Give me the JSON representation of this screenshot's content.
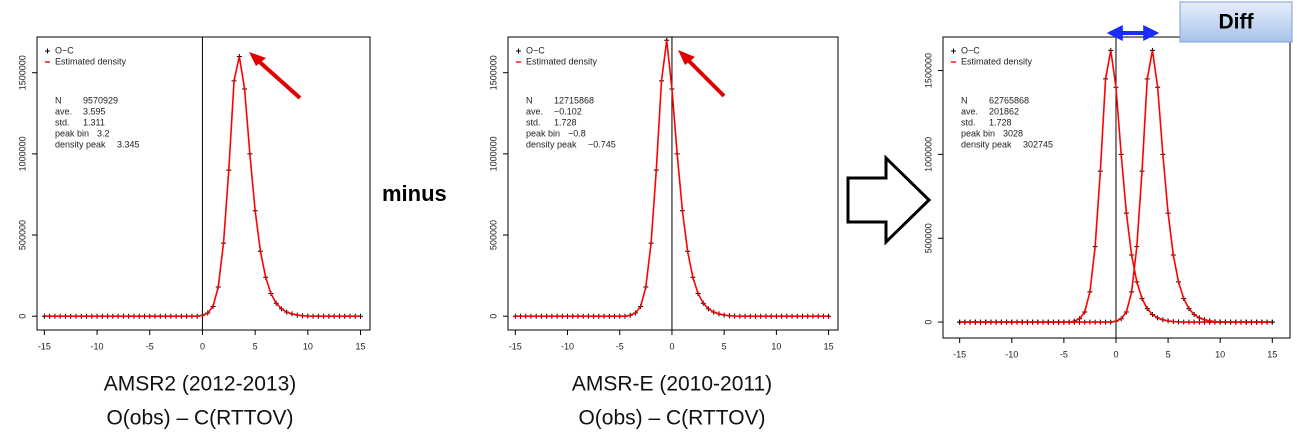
{
  "chart_data": [
    {
      "type": "line",
      "xlim": [
        -15.7,
        15.9
      ],
      "ylim": [
        -85000,
        1720000
      ],
      "xticks": [
        -15,
        -10,
        -5,
        0,
        5,
        10,
        15
      ],
      "yticks": [
        0,
        500000,
        1000000,
        1500000
      ],
      "vline": 0,
      "x": [
        -15,
        -14.5,
        -14,
        -13.5,
        -13,
        -12.5,
        -12,
        -11.5,
        -11,
        -10.5,
        -10,
        -9.5,
        -9,
        -8.5,
        -8,
        -7.5,
        -7,
        -6.5,
        -6,
        -5.5,
        -5,
        -4.5,
        -4,
        -3.5,
        -3,
        -2.5,
        -2,
        -1.5,
        -1,
        -0.5,
        0,
        0.5,
        1,
        1.5,
        2,
        2.5,
        3,
        3.5,
        4,
        4.5,
        5,
        5.5,
        6,
        6.5,
        7,
        7.5,
        8,
        8.5,
        9,
        9.5,
        10,
        10.5,
        11,
        11.5,
        12,
        12.5,
        13,
        13.5,
        14,
        14.5,
        15
      ],
      "series": [
        {
          "name": "O−C",
          "style": "points",
          "color": "#000000",
          "values": [
            0,
            0,
            0,
            0,
            0,
            0,
            0,
            0,
            0,
            0,
            0,
            0,
            0,
            0,
            0,
            0,
            0,
            0,
            0,
            0,
            0,
            0,
            0,
            0,
            0,
            0,
            0,
            0,
            0,
            0,
            5000,
            20000,
            60000,
            180000,
            450000,
            900000,
            1450000,
            1600000,
            1400000,
            1000000,
            650000,
            400000,
            240000,
            140000,
            80000,
            45000,
            25000,
            14000,
            7000,
            3000,
            1000,
            0,
            0,
            0,
            0,
            0,
            0,
            0,
            0,
            0,
            0
          ]
        },
        {
          "name": "Estimated density",
          "style": "line",
          "color": "#ff0000",
          "values": [
            0,
            0,
            0,
            0,
            0,
            0,
            0,
            0,
            0,
            0,
            0,
            0,
            0,
            0,
            0,
            0,
            0,
            0,
            0,
            0,
            0,
            0,
            0,
            0,
            0,
            0,
            0,
            0,
            0,
            0,
            5000,
            20000,
            60000,
            180000,
            450000,
            900000,
            1450000,
            1600000,
            1400000,
            1000000,
            650000,
            400000,
            240000,
            140000,
            80000,
            45000,
            25000,
            14000,
            7000,
            3000,
            1000,
            0,
            0,
            0,
            0,
            0,
            0,
            0,
            0,
            0,
            0
          ]
        }
      ],
      "stats": [
        {
          "label": "N",
          "value": "9570929"
        },
        {
          "label": "ave.",
          "value": "3.595"
        },
        {
          "label": "std.",
          "value": "1.311"
        },
        {
          "label": "peak bin",
          "value": "3.2"
        },
        {
          "label": "density peak",
          "value": "3.345",
          "color": "#ff0000"
        }
      ],
      "caption": [
        "AMSR2 (2012-2013)",
        "O(obs) – C(RTTOV)"
      ]
    },
    {
      "type": "line",
      "xlim": [
        -15.7,
        15.9
      ],
      "ylim": [
        -85000,
        1720000
      ],
      "xticks": [
        -15,
        -10,
        -5,
        0,
        5,
        10,
        15
      ],
      "yticks": [
        0,
        500000,
        1000000,
        1500000
      ],
      "vline": 0,
      "x": [
        -15,
        -14.5,
        -14,
        -13.5,
        -13,
        -12.5,
        -12,
        -11.5,
        -11,
        -10.5,
        -10,
        -9.5,
        -9,
        -8.5,
        -8,
        -7.5,
        -7,
        -6.5,
        -6,
        -5.5,
        -5,
        -4.5,
        -4,
        -3.5,
        -3,
        -2.5,
        -2,
        -1.5,
        -1,
        -0.5,
        0,
        0.5,
        1,
        1.5,
        2,
        2.5,
        3,
        3.5,
        4,
        4.5,
        5,
        5.5,
        6,
        6.5,
        7,
        7.5,
        8,
        8.5,
        9,
        9.5,
        10,
        10.5,
        11,
        11.5,
        12,
        12.5,
        13,
        13.5,
        14,
        14.5,
        15
      ],
      "series": [
        {
          "name": "O−C",
          "style": "points",
          "color": "#000000",
          "values": [
            0,
            0,
            0,
            0,
            0,
            0,
            0,
            0,
            0,
            0,
            0,
            0,
            0,
            0,
            0,
            0,
            0,
            0,
            0,
            0,
            0,
            0,
            5000,
            20000,
            60000,
            180000,
            450000,
            900000,
            1450000,
            1700000,
            1400000,
            1000000,
            650000,
            400000,
            240000,
            140000,
            80000,
            45000,
            25000,
            14000,
            7000,
            3000,
            1000,
            0,
            0,
            0,
            0,
            0,
            0,
            0,
            0,
            0,
            0,
            0,
            0,
            0,
            0,
            0,
            0,
            0,
            0
          ]
        },
        {
          "name": "Estimated density",
          "style": "line",
          "color": "#ff0000",
          "values": [
            0,
            0,
            0,
            0,
            0,
            0,
            0,
            0,
            0,
            0,
            0,
            0,
            0,
            0,
            0,
            0,
            0,
            0,
            0,
            0,
            0,
            0,
            5000,
            20000,
            60000,
            180000,
            450000,
            900000,
            1450000,
            1700000,
            1400000,
            1000000,
            650000,
            400000,
            240000,
            140000,
            80000,
            45000,
            25000,
            14000,
            7000,
            3000,
            1000,
            0,
            0,
            0,
            0,
            0,
            0,
            0,
            0,
            0,
            0,
            0,
            0,
            0,
            0,
            0,
            0,
            0,
            0
          ]
        }
      ],
      "stats": [
        {
          "label": "N",
          "value": "12715868"
        },
        {
          "label": "ave.",
          "value": "−0.102"
        },
        {
          "label": "std.",
          "value": "1.728"
        },
        {
          "label": "peak bin",
          "value": "−0.8"
        },
        {
          "label": "density peak",
          "value": "−0.745",
          "color": "#ff0000"
        }
      ],
      "caption": [
        "AMSR-E (2010-2011)",
        "O(obs) – C(RTTOV)"
      ]
    },
    {
      "type": "line",
      "xlim": [
        -16.6,
        16.7
      ],
      "ylim": [
        -95000,
        1700000
      ],
      "xticks": [
        -15,
        -10,
        -5,
        0,
        5,
        10,
        15
      ],
      "yticks": [
        0,
        500000,
        1000000,
        1500000
      ],
      "vline": 0,
      "x": [
        -15,
        -14.5,
        -14,
        -13.5,
        -13,
        -12.5,
        -12,
        -11.5,
        -11,
        -10.5,
        -10,
        -9.5,
        -9,
        -8.5,
        -8,
        -7.5,
        -7,
        -6.5,
        -6,
        -5.5,
        -5,
        -4.5,
        -4,
        -3.5,
        -3,
        -2.5,
        -2,
        -1.5,
        -1,
        -0.5,
        0,
        0.5,
        1,
        1.5,
        2,
        2.5,
        3,
        3.5,
        4,
        4.5,
        5,
        5.5,
        6,
        6.5,
        7,
        7.5,
        8,
        8.5,
        9,
        9.5,
        10,
        10.5,
        11,
        11.5,
        12,
        12.5,
        13,
        13.5,
        14,
        14.5,
        15
      ],
      "series": [
        {
          "name": "O−C",
          "style": "points",
          "color": "#000000",
          "values": [
            0,
            0,
            0,
            0,
            0,
            0,
            0,
            0,
            0,
            0,
            0,
            0,
            0,
            0,
            0,
            0,
            0,
            0,
            0,
            0,
            0,
            0,
            5000,
            20000,
            60000,
            180000,
            450000,
            900000,
            1450000,
            1620000,
            1400000,
            1000000,
            650000,
            400000,
            240000,
            140000,
            80000,
            45000,
            25000,
            14000,
            7000,
            3000,
            1000,
            0,
            0,
            0,
            0,
            0,
            0,
            0,
            0,
            0,
            0,
            0,
            0,
            0,
            0,
            0,
            0,
            0,
            0
          ]
        },
        {
          "name": "Estimated density",
          "style": "line",
          "color": "#ff0000",
          "values": [
            0,
            0,
            0,
            0,
            0,
            0,
            0,
            0,
            0,
            0,
            0,
            0,
            0,
            0,
            0,
            0,
            0,
            0,
            0,
            0,
            0,
            0,
            5000,
            20000,
            60000,
            180000,
            450000,
            900000,
            1450000,
            1620000,
            1400000,
            1000000,
            650000,
            400000,
            240000,
            140000,
            80000,
            45000,
            25000,
            14000,
            7000,
            3000,
            1000,
            0,
            0,
            0,
            0,
            0,
            0,
            0,
            0,
            0,
            0,
            0,
            0,
            0,
            0,
            0,
            0,
            0,
            0
          ]
        },
        {
          "style": "points",
          "color": "#000000",
          "values": [
            0,
            0,
            0,
            0,
            0,
            0,
            0,
            0,
            0,
            0,
            0,
            0,
            0,
            0,
            0,
            0,
            0,
            0,
            0,
            0,
            0,
            0,
            0,
            0,
            0,
            0,
            0,
            0,
            0,
            0,
            5000,
            20000,
            60000,
            180000,
            450000,
            900000,
            1450000,
            1620000,
            1400000,
            1000000,
            650000,
            400000,
            240000,
            140000,
            80000,
            45000,
            25000,
            14000,
            7000,
            3000,
            1000,
            0,
            0,
            0,
            0,
            0,
            0,
            0,
            0,
            0,
            0
          ]
        },
        {
          "style": "line",
          "color": "#ff0000",
          "values": [
            0,
            0,
            0,
            0,
            0,
            0,
            0,
            0,
            0,
            0,
            0,
            0,
            0,
            0,
            0,
            0,
            0,
            0,
            0,
            0,
            0,
            0,
            0,
            0,
            0,
            0,
            0,
            0,
            0,
            0,
            5000,
            20000,
            60000,
            180000,
            450000,
            900000,
            1450000,
            1620000,
            1400000,
            1000000,
            650000,
            400000,
            240000,
            140000,
            80000,
            45000,
            25000,
            14000,
            7000,
            3000,
            1000,
            0,
            0,
            0,
            0,
            0,
            0,
            0,
            0,
            0,
            0
          ]
        }
      ],
      "stats": [
        {
          "label": "N",
          "value": "62765868"
        },
        {
          "label": "ave.",
          "value": "201862"
        },
        {
          "label": "std.",
          "value": "1.728"
        },
        {
          "label": "peak bin",
          "value": "3028"
        },
        {
          "label": "density peak",
          "value": "302745",
          "color": "#ff0000"
        }
      ]
    }
  ],
  "operator": "minus",
  "diff_label": "Diff"
}
